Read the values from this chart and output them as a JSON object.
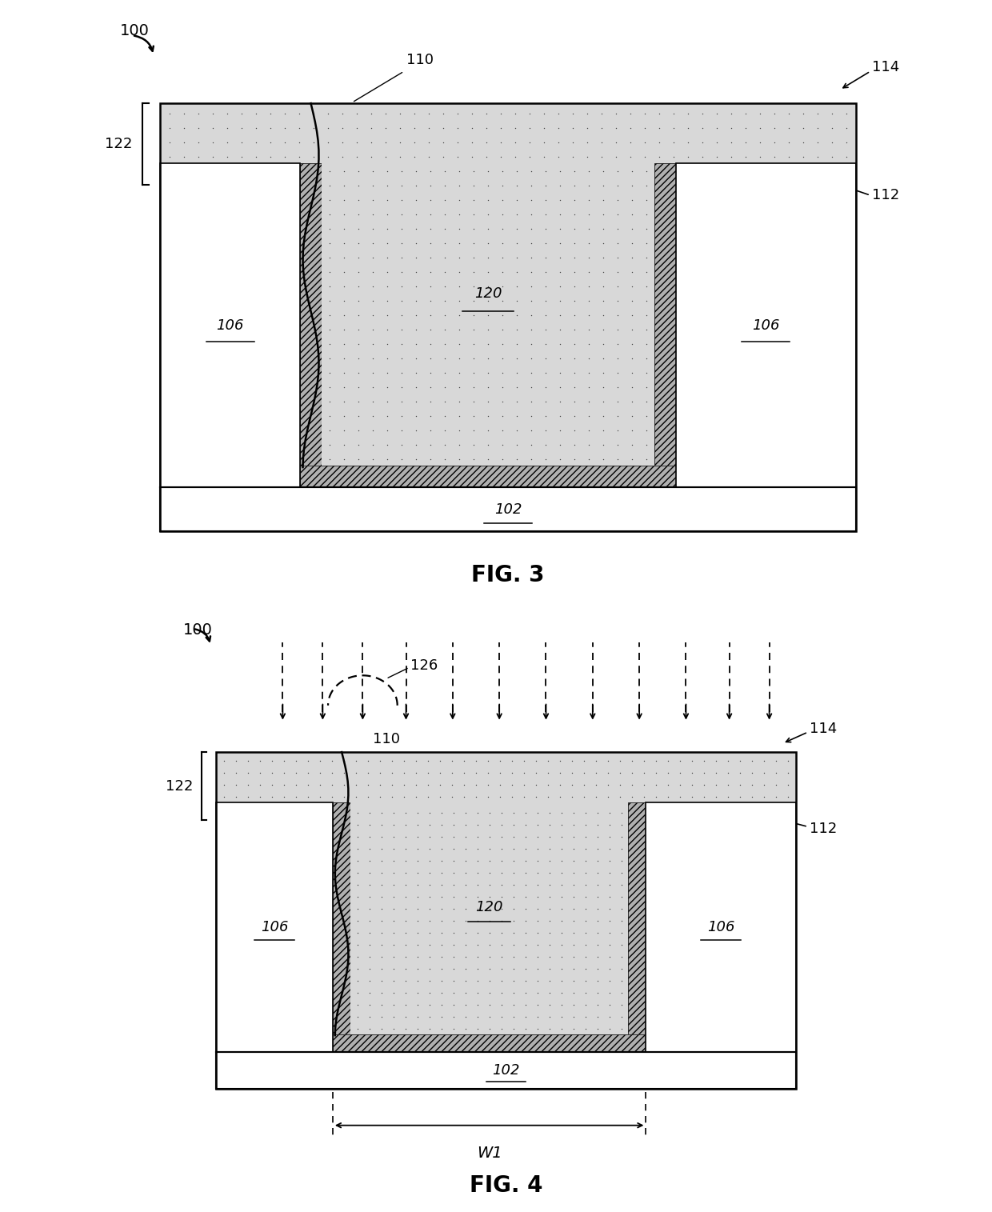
{
  "fig_width": 12.4,
  "fig_height": 15.15,
  "bg_color": "#ffffff",
  "fig3": {
    "title": "FIG. 3",
    "label_100": "100",
    "label_110": "110",
    "label_114": "114",
    "label_112": "112",
    "label_122": "122",
    "label_120": "120",
    "label_106": "106",
    "label_102": "102"
  },
  "fig4": {
    "title": "FIG. 4",
    "label_100": "100",
    "label_110": "110",
    "label_114": "114",
    "label_112": "112",
    "label_122": "122",
    "label_120": "120",
    "label_106": "106",
    "label_102": "102",
    "label_126": "126",
    "label_W1": "W1"
  }
}
